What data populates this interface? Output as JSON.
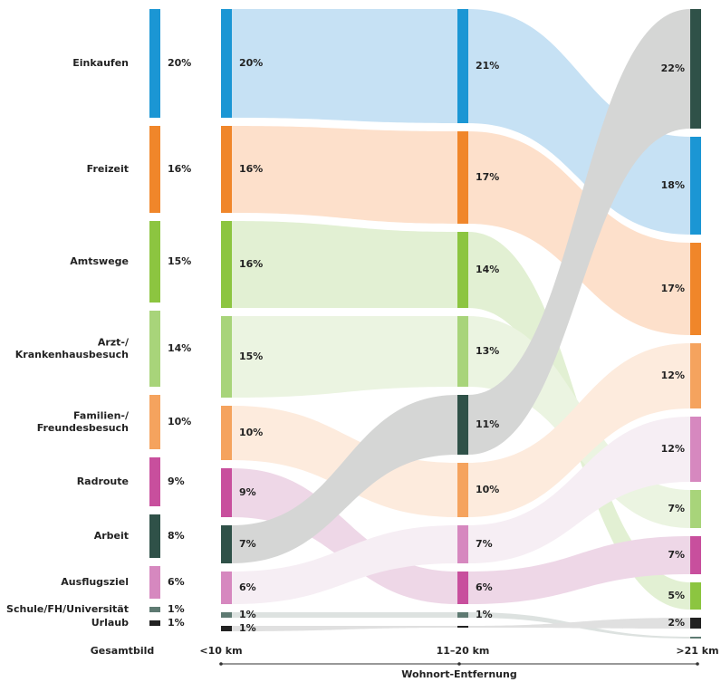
{
  "chart_data": {
    "type": "bump",
    "columns": [
      "Gesamtbild",
      "<10 km",
      "11–20 km",
      ">21 km"
    ],
    "xlabel": "Wohnort-Entfernung",
    "series": [
      {
        "name": "Einkaufen",
        "color": "#1b96d4",
        "flow_color": "#c6e1f4",
        "values": [
          20,
          20,
          21,
          18
        ],
        "value_labels": [
          "20%",
          "20%",
          "21%",
          "18%"
        ]
      },
      {
        "name": "Freizeit",
        "color": "#f0862a",
        "flow_color": "#fde0cb",
        "values": [
          16,
          16,
          17,
          17
        ],
        "value_labels": [
          "16%",
          "16%",
          "17%",
          "17%"
        ]
      },
      {
        "name": "Amtswege",
        "color": "#8cc540",
        "flow_color": "#e2f0d3",
        "values": [
          15,
          16,
          14,
          5
        ],
        "value_labels": [
          "15%",
          "16%",
          "14%",
          "5%"
        ]
      },
      {
        "name": "Arzt-/Krankenhausbesuch",
        "color": "#a8d47a",
        "flow_color": "#ebf4e1",
        "values": [
          14,
          15,
          13,
          7
        ],
        "value_labels": [
          "14%",
          "15%",
          "13%",
          "7%"
        ]
      },
      {
        "name": "Familien-/Freundesbesuch",
        "color": "#f5a35e",
        "flow_color": "#fdebdd",
        "values": [
          10,
          10,
          10,
          12
        ],
        "value_labels": [
          "10%",
          "10%",
          "10%",
          "12%"
        ]
      },
      {
        "name": "Radroute",
        "color": "#c84f9d",
        "flow_color": "#eed7e7",
        "values": [
          9,
          9,
          6,
          7
        ],
        "value_labels": [
          "9%",
          "9%",
          "6%",
          "7%"
        ]
      },
      {
        "name": "Arbeit",
        "color": "#2f5148",
        "flow_color": "#d5d6d5",
        "values": [
          8,
          7,
          11,
          22
        ],
        "value_labels": [
          "8%",
          "7%",
          "11%",
          "22%"
        ]
      },
      {
        "name": "Ausflugsziel",
        "color": "#d688bf",
        "flow_color": "#f6eef4",
        "values": [
          6,
          6,
          7,
          12
        ],
        "value_labels": [
          "6%",
          "6%",
          "7%",
          "12%"
        ]
      },
      {
        "name": "Schule/FH/Universität",
        "color": "#5e7a72",
        "flow_color": "#dde2e0",
        "values": [
          1,
          1,
          1,
          0
        ],
        "value_labels": [
          "1%",
          "1%",
          "1%",
          null
        ]
      },
      {
        "name": "Urlaub",
        "color": "#222222",
        "flow_color": "#e0e0e0",
        "values": [
          1,
          1,
          0,
          2
        ],
        "value_labels": [
          "1%",
          "1%",
          null,
          "2%"
        ]
      }
    ]
  }
}
